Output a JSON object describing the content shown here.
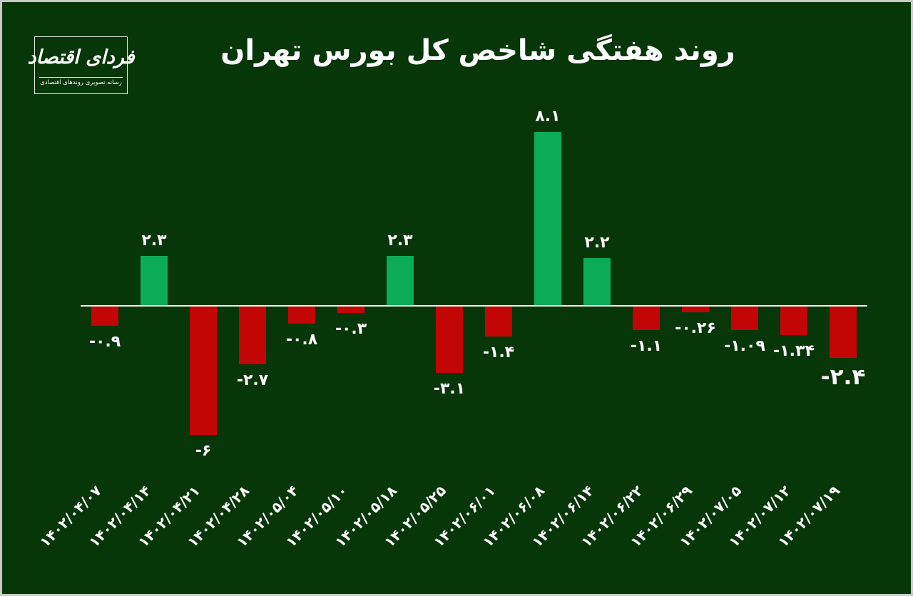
{
  "page": {
    "background_color": "#073608",
    "frame_border_color": "#c9c9c9"
  },
  "logo": {
    "brand_name": "فردای اقتصاد",
    "tagline": "رسانه تصویری روندهای اقتصادی"
  },
  "header": {
    "title": "روند هفتگی شاخص کل بورس تهران"
  },
  "chart_data": {
    "type": "bar",
    "title": "روند هفتگی شاخص کل بورس تهران",
    "categories": [
      "۱۴۰۲/۰۴/۰۷",
      "۱۴۰۲/۰۴/۱۴",
      "۱۴۰۲/۰۴/۲۱",
      "۱۴۰۲/۰۴/۲۸",
      "۱۴۰۲/۰۵/۰۴",
      "۱۴۰۲/۰۵/۱۰",
      "۱۴۰۲/۰۵/۱۸",
      "۱۴۰۲/۰۵/۲۵",
      "۱۴۰۲/۰۶/۰۱",
      "۱۴۰۲/۰۶/۰۸",
      "۱۴۰۲/۰۶/۱۴",
      "۱۴۰۲/۰۶/۲۲",
      "۱۴۰۲/۰۶/۲۹",
      "۱۴۰۲/۰۷/۰۵",
      "۱۴۰۲/۰۷/۱۲",
      "۱۴۰۲/۰۷/۱۹"
    ],
    "values": [
      -0.9,
      2.3,
      -6,
      -2.7,
      -0.8,
      -0.3,
      2.3,
      -3.1,
      -1.4,
      8.1,
      2.2,
      -1.1,
      -0.26,
      -1.09,
      -1.34,
      -2.4
    ],
    "value_labels": [
      "-۰.۹",
      "۲.۳",
      "-۶",
      "-۲.۷",
      "-۰.۸",
      "-۰.۳",
      "۲.۳",
      "-۳.۱",
      "-۱.۴",
      "۸.۱",
      "۲.۲",
      "-۱.۱",
      "-۰.۲۶",
      "-۱.۰۹",
      "-۱.۳۴",
      "-۲.۴"
    ],
    "xlabel": "",
    "ylabel": "",
    "ylim": [
      -6.5,
      8.5
    ],
    "grid": false,
    "legend": false,
    "x_tick_rotation_deg": 45,
    "positive_color": "#0cab57",
    "negative_color": "#c20505",
    "baseline_color": "#ededed",
    "label_color": "#ffffff",
    "highlighted_point": {
      "category": "۱۴۰۲/۰۷/۱۹",
      "value": -2.4,
      "style": "larger-bold-label"
    }
  }
}
